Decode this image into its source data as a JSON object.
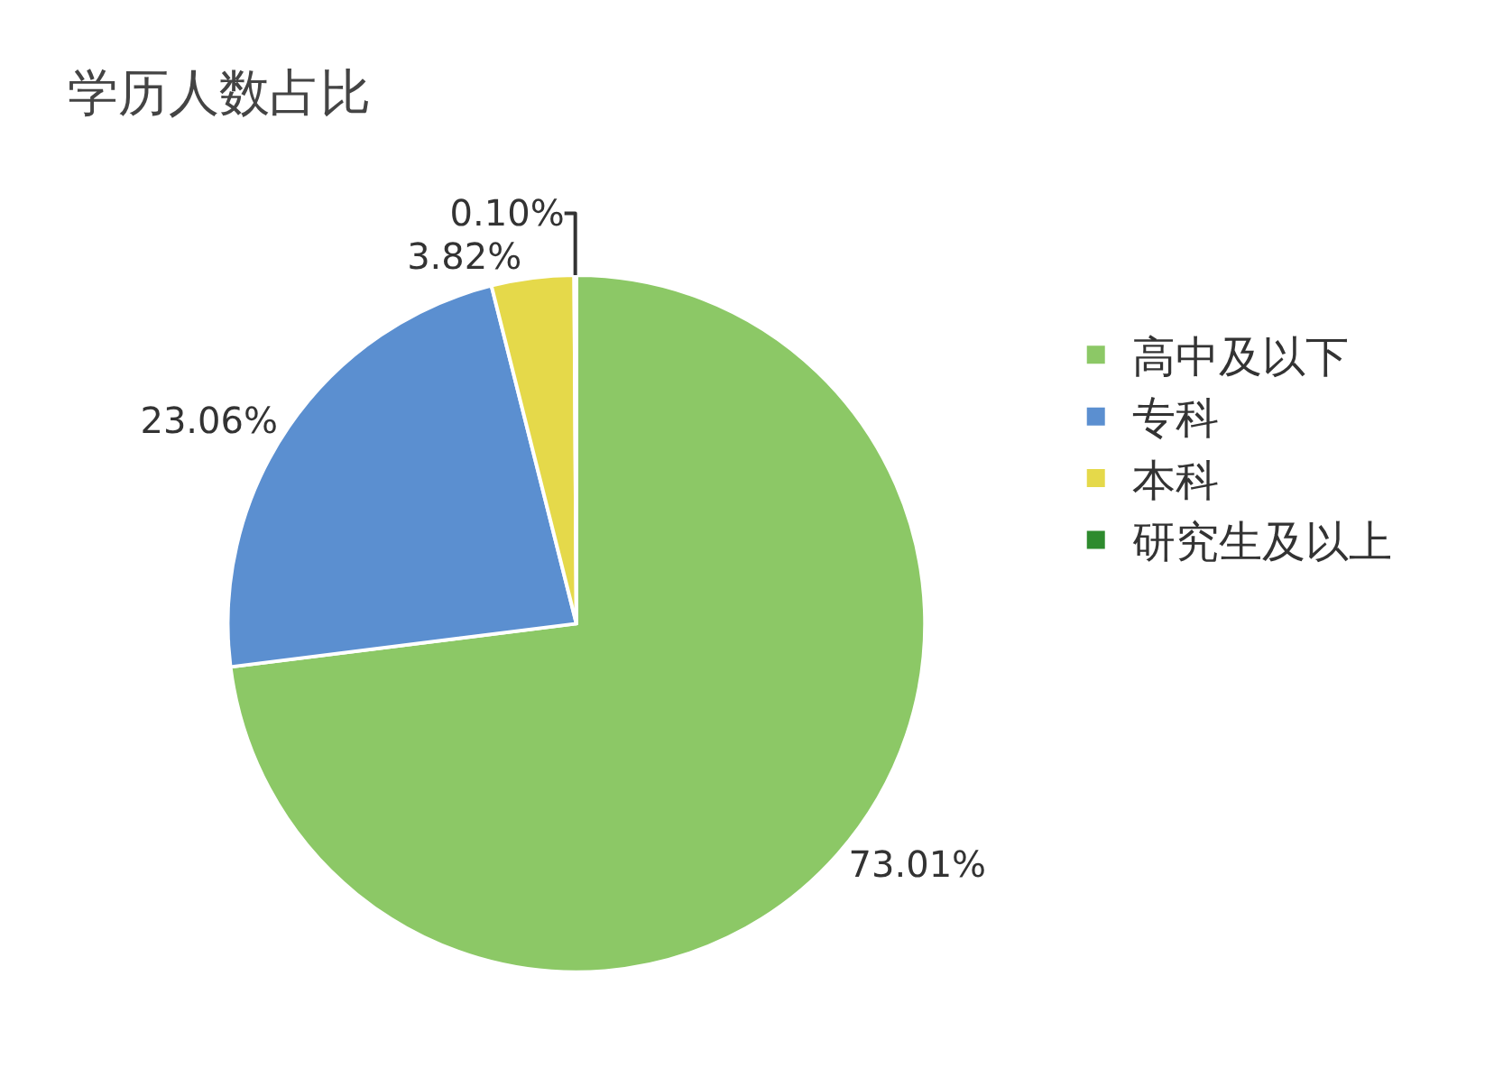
{
  "chart_data": {
    "type": "pie",
    "title": "学历人数占比",
    "categories": [
      "高中及以下",
      "专科",
      "本科",
      "研究生及以上"
    ],
    "values": [
      73.01,
      23.06,
      3.82,
      0.1
    ],
    "colors": [
      "#8cc866",
      "#5b8fd0",
      "#e5d94a",
      "#2e8b2e"
    ],
    "value_labels": [
      "73.01%",
      "23.06%",
      "3.82%",
      "0.10%"
    ],
    "legend": "right"
  }
}
